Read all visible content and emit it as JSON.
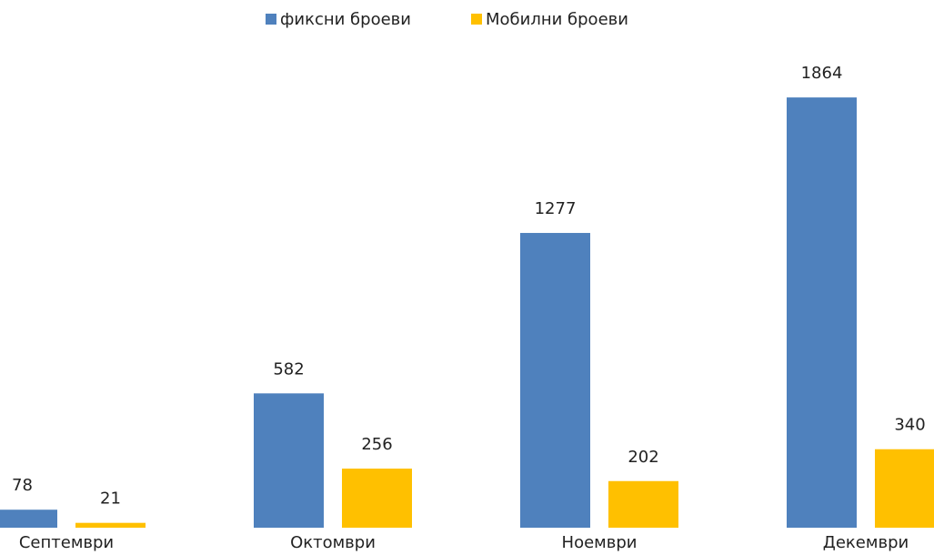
{
  "chart_data": {
    "type": "bar",
    "categories": [
      "Септември",
      "Октомври",
      "Ноември",
      "Декември"
    ],
    "series": [
      {
        "name": "фиксни броеви",
        "color": "#4f81bd",
        "values": [
          78,
          582,
          1277,
          1864
        ]
      },
      {
        "name": "Мобилни броеви",
        "color": "#ffc000",
        "values": [
          21,
          256,
          202,
          340
        ]
      }
    ],
    "legend": "top"
  }
}
